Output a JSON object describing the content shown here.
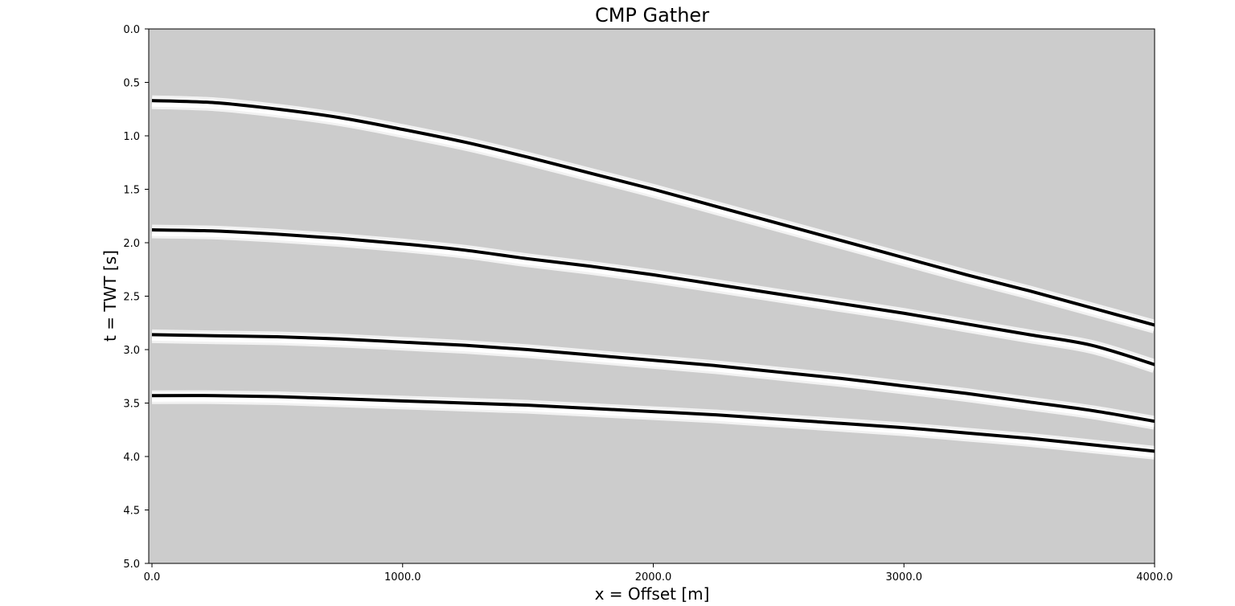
{
  "chart_data": {
    "type": "line",
    "title": "CMP Gather",
    "xlabel": "x = Offset [m]",
    "ylabel": "t = TWT [s]",
    "xlim": [
      0,
      4000
    ],
    "ylim": [
      5.0,
      0.0
    ],
    "y_inverted": true,
    "grid": false,
    "x_ticks": [
      0,
      1000,
      2000,
      3000,
      4000
    ],
    "x_tick_labels": [
      "0.0",
      "1000.0",
      "2000.0",
      "3000.0",
      "4000.0"
    ],
    "y_ticks": [
      0.0,
      0.5,
      1.0,
      1.5,
      2.0,
      2.5,
      3.0,
      3.5,
      4.0,
      4.5,
      5.0
    ],
    "y_tick_labels": [
      "0.0",
      "0.5",
      "1.0",
      "1.5",
      "2.0",
      "2.5",
      "3.0",
      "3.5",
      "4.0",
      "4.5",
      "5.0"
    ],
    "colors": {
      "background": "#cccccc",
      "event": "#000000",
      "halo": "#ffffff"
    },
    "series": [
      {
        "x": [
          0,
          250,
          500,
          750,
          1000,
          1250,
          1500,
          1750,
          2000,
          2250,
          2500,
          2750,
          3000,
          3250,
          3500,
          3750,
          4000
        ],
        "values": [
          0.67,
          0.69,
          0.75,
          0.83,
          0.94,
          1.06,
          1.2,
          1.35,
          1.5,
          1.66,
          1.82,
          1.98,
          2.14,
          2.3,
          2.45,
          2.61,
          2.77
        ]
      },
      {
        "x": [
          0,
          250,
          500,
          750,
          1000,
          1250,
          1500,
          1750,
          2000,
          2250,
          2500,
          2750,
          3000,
          3250,
          3500,
          3750,
          4000
        ],
        "values": [
          1.88,
          1.89,
          1.92,
          1.96,
          2.01,
          2.07,
          2.15,
          2.22,
          2.3,
          2.39,
          2.48,
          2.57,
          2.66,
          2.76,
          2.86,
          2.96,
          3.14
        ]
      },
      {
        "x": [
          0,
          250,
          500,
          750,
          1000,
          1250,
          1500,
          1750,
          2000,
          2250,
          2500,
          2750,
          3000,
          3250,
          3500,
          3750,
          4000
        ],
        "values": [
          2.86,
          2.87,
          2.88,
          2.9,
          2.93,
          2.96,
          3.0,
          3.05,
          3.1,
          3.15,
          3.21,
          3.27,
          3.34,
          3.41,
          3.49,
          3.57,
          3.67
        ]
      },
      {
        "x": [
          0,
          250,
          500,
          750,
          1000,
          1250,
          1500,
          1750,
          2000,
          2250,
          2500,
          2750,
          3000,
          3250,
          3500,
          3750,
          4000
        ],
        "values": [
          3.43,
          3.43,
          3.44,
          3.46,
          3.48,
          3.5,
          3.52,
          3.55,
          3.58,
          3.61,
          3.65,
          3.69,
          3.73,
          3.78,
          3.83,
          3.89,
          3.95
        ]
      }
    ]
  }
}
